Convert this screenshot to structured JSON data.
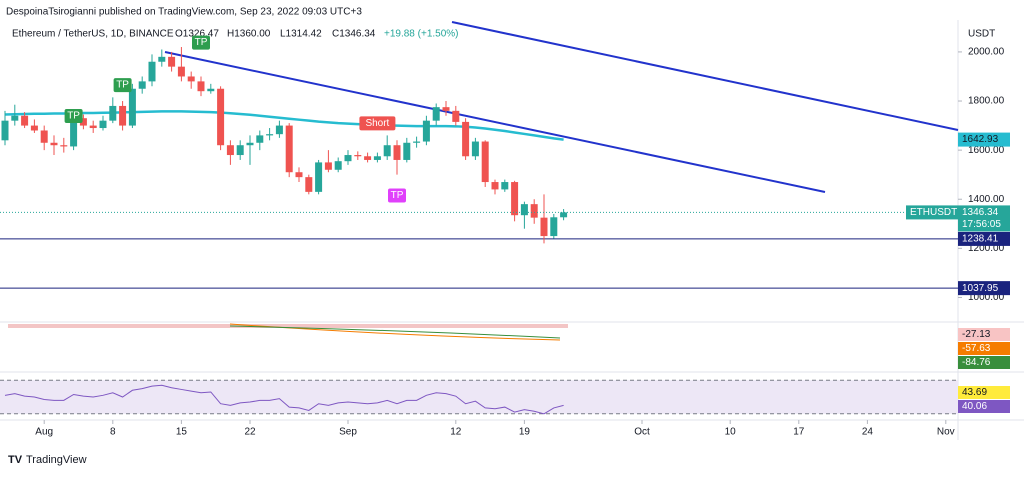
{
  "header": "DespoinaTsirogianni published on TradingView.com, Sep 23, 2022 09:03 UTC+3",
  "legend": {
    "name": "Ethereum / TetherUS, 1D, BINANCE",
    "open": "O1326.47",
    "high": "H1360.00",
    "low": "L1314.42",
    "close": "C1346.34",
    "change": "+19.88 (+1.50%)"
  },
  "brand": "TradingView",
  "chart_data": {
    "type": "candlestick",
    "currency": "USDT",
    "symbol": "ETHUSDT",
    "countdown": "17:56:05",
    "x": [
      "2022-07-28",
      "2022-07-29",
      "2022-07-30",
      "2022-07-31",
      "2022-08-01",
      "2022-08-02",
      "2022-08-03",
      "2022-08-04",
      "2022-08-05",
      "2022-08-06",
      "2022-08-07",
      "2022-08-08",
      "2022-08-09",
      "2022-08-10",
      "2022-08-11",
      "2022-08-12",
      "2022-08-13",
      "2022-08-14",
      "2022-08-15",
      "2022-08-16",
      "2022-08-17",
      "2022-08-18",
      "2022-08-19",
      "2022-08-20",
      "2022-08-21",
      "2022-08-22",
      "2022-08-23",
      "2022-08-24",
      "2022-08-25",
      "2022-08-26",
      "2022-08-27",
      "2022-08-28",
      "2022-08-29",
      "2022-08-30",
      "2022-08-31",
      "2022-09-01",
      "2022-09-02",
      "2022-09-03",
      "2022-09-04",
      "2022-09-05",
      "2022-09-06",
      "2022-09-07",
      "2022-09-08",
      "2022-09-09",
      "2022-09-10",
      "2022-09-11",
      "2022-09-12",
      "2022-09-13",
      "2022-09-14",
      "2022-09-15",
      "2022-09-16",
      "2022-09-17",
      "2022-09-18",
      "2022-09-19",
      "2022-09-20",
      "2022-09-21",
      "2022-09-22",
      "2022-09-23"
    ],
    "open": [
      1640,
      1720,
      1740,
      1700,
      1680,
      1630,
      1620,
      1615,
      1730,
      1700,
      1690,
      1720,
      1780,
      1700,
      1850,
      1880,
      1960,
      1980,
      1940,
      1900,
      1880,
      1840,
      1850,
      1620,
      1580,
      1620,
      1630,
      1660,
      1665,
      1700,
      1510,
      1490,
      1430,
      1550,
      1520,
      1555,
      1580,
      1575,
      1560,
      1575,
      1620,
      1560,
      1630,
      1635,
      1720,
      1775,
      1760,
      1715,
      1575,
      1635,
      1470,
      1440,
      1470,
      1335,
      1380,
      1325,
      1250,
      1326.47
    ],
    "high": [
      1760,
      1785,
      1755,
      1725,
      1700,
      1660,
      1650,
      1750,
      1745,
      1720,
      1740,
      1815,
      1800,
      1870,
      1900,
      1990,
      2010,
      2000,
      2020,
      1920,
      1900,
      1870,
      1860,
      1640,
      1640,
      1660,
      1680,
      1690,
      1720,
      1710,
      1530,
      1500,
      1560,
      1600,
      1570,
      1600,
      1595,
      1590,
      1590,
      1660,
      1640,
      1650,
      1655,
      1740,
      1790,
      1800,
      1780,
      1730,
      1650,
      1640,
      1480,
      1480,
      1475,
      1390,
      1400,
      1420,
      1340,
      1360
    ],
    "low": [
      1620,
      1700,
      1690,
      1670,
      1600,
      1580,
      1590,
      1600,
      1685,
      1670,
      1680,
      1710,
      1680,
      1690,
      1830,
      1860,
      1940,
      1920,
      1880,
      1850,
      1820,
      1830,
      1600,
      1540,
      1560,
      1540,
      1600,
      1640,
      1650,
      1490,
      1470,
      1420,
      1420,
      1510,
      1510,
      1540,
      1560,
      1550,
      1550,
      1560,
      1500,
      1550,
      1610,
      1620,
      1700,
      1740,
      1700,
      1560,
      1560,
      1450,
      1420,
      1430,
      1310,
      1280,
      1300,
      1220,
      1240,
      1314.42
    ],
    "close": [
      1720,
      1740,
      1700,
      1680,
      1630,
      1620,
      1615,
      1730,
      1700,
      1690,
      1720,
      1780,
      1700,
      1850,
      1880,
      1960,
      1980,
      1940,
      1900,
      1880,
      1840,
      1850,
      1620,
      1580,
      1620,
      1630,
      1660,
      1665,
      1700,
      1510,
      1490,
      1430,
      1550,
      1520,
      1555,
      1580,
      1575,
      1560,
      1575,
      1620,
      1560,
      1630,
      1635,
      1720,
      1775,
      1760,
      1715,
      1575,
      1635,
      1470,
      1440,
      1470,
      1335,
      1380,
      1325,
      1250,
      1326.47,
      1346.34
    ],
    "last_label": {
      "value": 1346.34,
      "label": "1346.34"
    },
    "ma": {
      "color": "#26bcd0",
      "values": [
        1745,
        1746,
        1747,
        1748,
        1748,
        1749,
        1749,
        1750,
        1751,
        1751,
        1752,
        1753,
        1754,
        1755,
        1756,
        1757,
        1758,
        1758,
        1758,
        1757,
        1756,
        1755,
        1753,
        1750,
        1747,
        1744,
        1740,
        1736,
        1732,
        1728,
        1724,
        1720,
        1716,
        1713,
        1710,
        1708,
        1706,
        1704,
        1702,
        1701,
        1700,
        1699,
        1698,
        1698,
        1698,
        1698,
        1697,
        1695,
        1692,
        1688,
        1683,
        1678,
        1672,
        1666,
        1660,
        1654,
        1648,
        1642.93
      ]
    },
    "levels": [
      1238.41,
      1037.95
    ],
    "signals": [
      {
        "label": "TP",
        "date": "2022-08-04",
        "price": 1739,
        "color": "#2e9e4f"
      },
      {
        "label": "TP",
        "date": "2022-08-09",
        "price": 1865,
        "color": "#2e9e4f"
      },
      {
        "label": "TP",
        "date": "2022-08-17",
        "price": 2038,
        "color": "#2e9e4f"
      },
      {
        "label": "Short",
        "date": "2022-09-04",
        "price": 1709,
        "color": "#ef5350"
      },
      {
        "label": "TP",
        "date": "2022-09-06",
        "price": 1415,
        "color": "#e040fb"
      }
    ],
    "ylim": [
      900,
      2130
    ],
    "yticks": [
      {
        "value": 1000,
        "label": "1000.00"
      },
      {
        "value": 1200,
        "label": "1200.00"
      },
      {
        "value": 1400,
        "label": "1400.00"
      },
      {
        "value": 1600,
        "label": "1600.00"
      },
      {
        "value": 1800,
        "label": "1800.00"
      },
      {
        "value": 2000,
        "label": "2000.00"
      }
    ],
    "xticks": [
      {
        "value": "2022-08-01",
        "label": "Aug"
      },
      {
        "value": "2022-08-08",
        "label": "8"
      },
      {
        "value": "2022-08-15",
        "label": "15"
      },
      {
        "value": "2022-08-22",
        "label": "22"
      },
      {
        "value": "2022-09-01",
        "label": "Sep"
      },
      {
        "value": "2022-09-12",
        "label": "12"
      },
      {
        "value": "2022-09-19",
        "label": "19"
      },
      {
        "value": "2022-10-01",
        "label": "Oct"
      },
      {
        "value": "2022-10-10",
        "label": "10"
      },
      {
        "value": "2022-10-17",
        "label": "17"
      },
      {
        "value": "2022-10-24",
        "label": "24"
      },
      {
        "value": "2022-11-01",
        "label": "Nov"
      }
    ],
    "up_color": "#26a69a",
    "down_color": "#ef5350",
    "macd_labels": [
      -27.13,
      -57.63,
      -84.76
    ],
    "rsi": {
      "color": "#7e57c2",
      "values": [
        52,
        54,
        51,
        50,
        47,
        46,
        46,
        53,
        51,
        50,
        52,
        55,
        50,
        58,
        60,
        63,
        64,
        61,
        59,
        57,
        55,
        56,
        42,
        40,
        43,
        44,
        46,
        46,
        48,
        38,
        37,
        34,
        42,
        40,
        43,
        44,
        43,
        42,
        43,
        46,
        42,
        46,
        46,
        52,
        55,
        54,
        51,
        42,
        45,
        37,
        36,
        38,
        32,
        35,
        33,
        30,
        37,
        40.06
      ],
      "ylim": [
        25,
        75
      ],
      "bands": [
        70,
        30
      ],
      "labels": [
        43.69,
        40.06
      ]
    }
  }
}
